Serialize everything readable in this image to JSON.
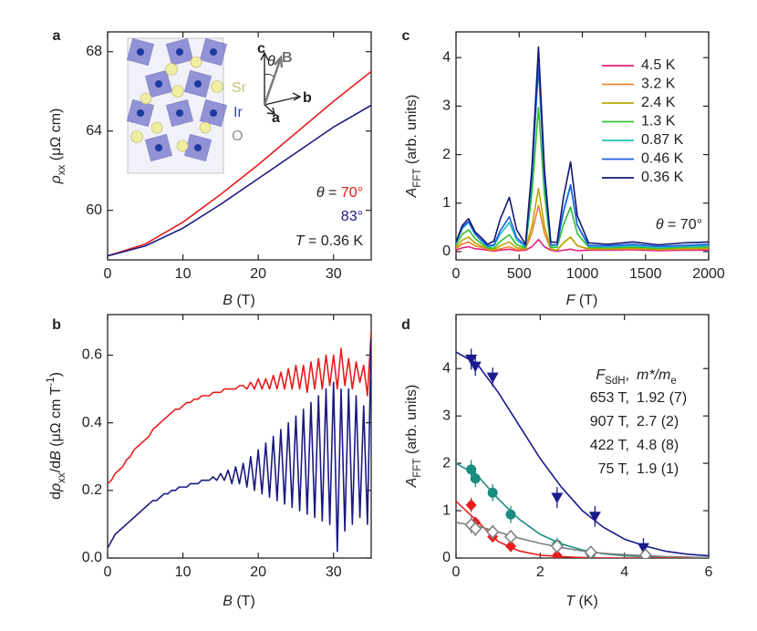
{
  "chart_data": [
    {
      "type": "line",
      "panel_label": "a",
      "x_label": [
        {
          "text": "B",
          "style": "italic"
        },
        {
          "text": " (T)"
        }
      ],
      "y_label": [
        {
          "text": "ρ",
          "style": "italic"
        },
        {
          "text": "xx",
          "style": "sub"
        },
        {
          "text": " (μΩ cm)"
        }
      ],
      "xlim": [
        0,
        35
      ],
      "xticks": [
        0,
        10,
        20,
        30
      ],
      "ylim": [
        57.5,
        69
      ],
      "yticks": [
        60,
        64,
        68
      ],
      "x": [
        0,
        5,
        10,
        15,
        20,
        25,
        30,
        35
      ],
      "series": [
        {
          "color": "#e81c1c",
          "values": [
            57.7,
            58.3,
            59.4,
            60.8,
            62.3,
            63.9,
            65.5,
            67.0
          ]
        },
        {
          "color": "#1a1a80",
          "values": [
            57.7,
            58.2,
            59.1,
            60.3,
            61.6,
            62.9,
            64.2,
            65.3
          ]
        }
      ],
      "annotations": [
        [
          {
            "text": "θ",
            "style": "italic"
          },
          {
            "text": " = "
          },
          {
            "text": "70°",
            "color": "#e81c1c"
          }
        ],
        [
          {
            "text": "83°",
            "color": "#1a1a80"
          }
        ],
        [
          {
            "text": "T",
            "style": "italic"
          },
          {
            "text": " = 0.36 K"
          }
        ],
        [
          {
            "text": "Sr",
            "color": "#c8c078"
          }
        ],
        [
          {
            "text": "Ir",
            "color": "#2a48a8"
          }
        ],
        [
          {
            "text": "O",
            "color": "#909090"
          }
        ],
        [
          {
            "text": "c",
            "style": "bold"
          }
        ],
        [
          {
            "text": "θ",
            "style": "italic"
          }
        ],
        [
          {
            "text": "B",
            "style": "bold",
            "color": "#707070"
          }
        ],
        [
          {
            "text": "b",
            "style": "bold"
          }
        ],
        [
          {
            "text": "a",
            "style": "bold"
          }
        ]
      ]
    },
    {
      "type": "line",
      "panel_label": "b",
      "x_label": [
        {
          "text": "B",
          "style": "italic"
        },
        {
          "text": " (T)"
        }
      ],
      "y_label": [
        {
          "text": "d"
        },
        {
          "text": "ρ",
          "style": "italic"
        },
        {
          "text": "xx",
          "style": "sub"
        },
        {
          "text": "/d"
        },
        {
          "text": "B",
          "style": "italic"
        },
        {
          "text": " (μΩ cm T"
        },
        {
          "text": "-1",
          "style": "sup"
        },
        {
          "text": ")"
        }
      ],
      "xlim": [
        0,
        35
      ],
      "xticks": [
        0,
        10,
        20,
        30
      ],
      "ylim": [
        0,
        0.72
      ],
      "yticks": [
        {
          "value": 0,
          "label": "0.0"
        },
        0.2,
        0.4,
        0.6
      ],
      "x": [
        0,
        0.5,
        1,
        1.5,
        2,
        2.5,
        3,
        3.5,
        4,
        4.5,
        5,
        5.5,
        6,
        6.5,
        7,
        7.5,
        8,
        8.5,
        9,
        9.5,
        10,
        10.5,
        11,
        11.5,
        12,
        12.5,
        13,
        13.5,
        14,
        14.5,
        15,
        15.5,
        16,
        16.5,
        17,
        17.5,
        18,
        18.5,
        19,
        19.5,
        20,
        20.5,
        21,
        21.5,
        22,
        22.5,
        23,
        23.5,
        24,
        24.5,
        25,
        25.5,
        26,
        26.5,
        27,
        27.5,
        28,
        28.5,
        29,
        29.5,
        30,
        30.5,
        31,
        31.5,
        32,
        32.5,
        33,
        33.5,
        34,
        34.5,
        35
      ],
      "series": [
        {
          "color": "#e81c1c",
          "values": [
            0.22,
            0.23,
            0.25,
            0.26,
            0.27,
            0.29,
            0.3,
            0.32,
            0.33,
            0.34,
            0.35,
            0.36,
            0.38,
            0.39,
            0.4,
            0.41,
            0.42,
            0.43,
            0.44,
            0.44,
            0.45,
            0.46,
            0.46,
            0.47,
            0.47,
            0.48,
            0.48,
            0.48,
            0.49,
            0.49,
            0.49,
            0.5,
            0.5,
            0.5,
            0.5,
            0.51,
            0.51,
            0.5,
            0.52,
            0.5,
            0.53,
            0.5,
            0.53,
            0.5,
            0.54,
            0.5,
            0.55,
            0.5,
            0.56,
            0.5,
            0.57,
            0.5,
            0.57,
            0.49,
            0.58,
            0.5,
            0.59,
            0.5,
            0.6,
            0.51,
            0.6,
            0.5,
            0.62,
            0.51,
            0.59,
            0.5,
            0.58,
            0.52,
            0.57,
            0.48,
            0.67
          ]
        },
        {
          "color": "#1a1a80",
          "values": [
            0.03,
            0.05,
            0.07,
            0.08,
            0.09,
            0.1,
            0.11,
            0.12,
            0.13,
            0.14,
            0.15,
            0.16,
            0.17,
            0.17,
            0.18,
            0.19,
            0.19,
            0.2,
            0.2,
            0.21,
            0.21,
            0.21,
            0.22,
            0.22,
            0.22,
            0.23,
            0.23,
            0.23,
            0.24,
            0.23,
            0.25,
            0.23,
            0.26,
            0.22,
            0.27,
            0.22,
            0.28,
            0.21,
            0.3,
            0.2,
            0.32,
            0.19,
            0.34,
            0.18,
            0.36,
            0.17,
            0.38,
            0.16,
            0.4,
            0.15,
            0.42,
            0.14,
            0.44,
            0.13,
            0.46,
            0.12,
            0.48,
            0.11,
            0.5,
            0.1,
            0.52,
            0.02,
            0.5,
            0.08,
            0.5,
            0.1,
            0.48,
            0.12,
            0.45,
            0.1,
            0.65
          ]
        }
      ]
    },
    {
      "type": "line",
      "panel_label": "c",
      "x_label": [
        {
          "text": "F",
          "style": "italic"
        },
        {
          "text": " (T)"
        }
      ],
      "y_label": [
        {
          "text": "A",
          "style": "italic"
        },
        {
          "text": "FFT",
          "style": "sub"
        },
        {
          "text": " (arb. units)"
        }
      ],
      "xlim": [
        0,
        2000
      ],
      "xticks": [
        0,
        500,
        1000,
        1500,
        2000
      ],
      "ylim": [
        -0.17,
        4.53
      ],
      "yticks": [
        0,
        1,
        2,
        3,
        4
      ],
      "x": [
        0,
        50,
        100,
        150,
        200,
        250,
        300,
        350,
        422,
        480,
        550,
        600,
        653,
        700,
        750,
        800,
        850,
        907,
        960,
        1050,
        1200,
        1400,
        1600,
        1800,
        2000
      ],
      "series": [
        {
          "name": "4.5 K",
          "color": "#e0207a",
          "values": [
            0.03,
            0.08,
            0.1,
            0.06,
            0.05,
            0.03,
            0.01,
            0.03,
            0.05,
            0.02,
            0.03,
            0.1,
            0.25,
            0.1,
            0.03,
            0.01,
            0.03,
            0.05,
            0.02,
            0.03,
            0.03,
            0.04,
            0.02,
            0.03,
            0.03
          ]
        },
        {
          "name": "3.2 K",
          "color": "#f08030",
          "values": [
            0.06,
            0.16,
            0.2,
            0.12,
            0.09,
            0.05,
            0.02,
            0.06,
            0.1,
            0.04,
            0.05,
            0.38,
            0.95,
            0.38,
            0.05,
            0.03,
            0.18,
            0.3,
            0.12,
            0.05,
            0.05,
            0.06,
            0.04,
            0.05,
            0.06
          ]
        },
        {
          "name": "2.4 K",
          "color": "#b8a800",
          "values": [
            0.09,
            0.24,
            0.3,
            0.18,
            0.12,
            0.06,
            0.04,
            0.12,
            0.2,
            0.08,
            0.06,
            0.52,
            1.3,
            0.52,
            0.06,
            0.03,
            0.18,
            0.3,
            0.12,
            0.06,
            0.06,
            0.07,
            0.05,
            0.06,
            0.07
          ]
        },
        {
          "name": "1.3 K",
          "color": "#30c030",
          "values": [
            0.14,
            0.36,
            0.45,
            0.27,
            0.17,
            0.08,
            0.07,
            0.21,
            0.35,
            0.14,
            0.08,
            1.19,
            2.97,
            1.19,
            0.09,
            0.09,
            0.55,
            0.92,
            0.37,
            0.09,
            0.08,
            0.1,
            0.07,
            0.09,
            0.1
          ]
        },
        {
          "name": "0.87 K",
          "color": "#20c0c0",
          "values": [
            0.18,
            0.48,
            0.6,
            0.36,
            0.22,
            0.1,
            0.12,
            0.36,
            0.6,
            0.24,
            0.1,
            1.52,
            3.8,
            1.52,
            0.12,
            0.14,
            0.81,
            1.35,
            0.54,
            0.11,
            0.1,
            0.12,
            0.09,
            0.11,
            0.12
          ]
        },
        {
          "name": "0.46 K",
          "color": "#2060e0",
          "values": [
            0.19,
            0.5,
            0.62,
            0.37,
            0.24,
            0.12,
            0.14,
            0.43,
            0.72,
            0.29,
            0.12,
            1.54,
            3.85,
            1.54,
            0.14,
            0.14,
            0.83,
            1.38,
            0.55,
            0.13,
            0.12,
            0.15,
            0.11,
            0.13,
            0.15
          ]
        },
        {
          "name": "0.36 K",
          "color": "#101870",
          "values": [
            0.2,
            0.54,
            0.68,
            0.41,
            0.29,
            0.15,
            0.22,
            0.67,
            1.12,
            0.45,
            0.15,
            1.69,
            4.22,
            1.69,
            0.2,
            0.19,
            1.11,
            1.85,
            0.74,
            0.18,
            0.15,
            0.2,
            0.14,
            0.18,
            0.2
          ]
        }
      ],
      "annotations": [
        [
          {
            "text": "θ",
            "style": "italic"
          },
          {
            "text": " = 70°"
          }
        ]
      ]
    },
    {
      "type": "scatter",
      "panel_label": "d",
      "x_label": [
        {
          "text": "T",
          "style": "italic"
        },
        {
          "text": " (K)"
        }
      ],
      "y_label": [
        {
          "text": "A",
          "style": "italic"
        },
        {
          "text": "FFT",
          "style": "sub"
        },
        {
          "text": " (arb. units)"
        }
      ],
      "xlim": [
        0,
        6
      ],
      "xticks": [
        0,
        2,
        4,
        6
      ],
      "ylim": [
        0,
        5.14
      ],
      "yticks": [
        0,
        1,
        2,
        3,
        4
      ],
      "legend_title_left": [
        {
          "text": "F",
          "style": "italic"
        },
        {
          "text": "SdH",
          "style": "sub"
        },
        {
          "text": ","
        }
      ],
      "legend_title_right": [
        {
          "text": "m*/m",
          "style": "italic"
        },
        {
          "text": "e",
          "style": "sub"
        }
      ],
      "fit_x": [
        0,
        0.5,
        1,
        1.5,
        2,
        2.5,
        3,
        3.5,
        4,
        4.5,
        5,
        5.5,
        6
      ],
      "series": [
        {
          "name": "653 T,",
          "mass_label": "1.92 (7)",
          "color": "#1a1a8c",
          "marker": "triangle-down",
          "x": [
            0.36,
            0.46,
            0.87,
            2.4,
            3.3,
            4.45
          ],
          "values": [
            4.2,
            4.05,
            3.82,
            1.28,
            0.88,
            0.22
          ],
          "errors": [
            0.22,
            0.2,
            0.2,
            0.22,
            0.22,
            0.2
          ],
          "fit": [
            4.35,
            4.1,
            3.5,
            2.8,
            2.1,
            1.5,
            1.0,
            0.65,
            0.4,
            0.25,
            0.14,
            0.08,
            0.05
          ]
        },
        {
          "name": "907 T,",
          "mass_label": "2.7 (2)",
          "color": "#1a8c80",
          "marker": "circle",
          "x": [
            0.36,
            0.46,
            0.87,
            1.3,
            2.4,
            3.2,
            4.5
          ],
          "values": [
            1.87,
            1.68,
            1.38,
            0.92,
            0.28,
            0.1,
            0.05
          ],
          "errors": [
            0.2,
            0.18,
            0.18,
            0.18,
            0.15,
            0.1,
            0.08
          ],
          "fit": [
            2.0,
            1.75,
            1.25,
            0.82,
            0.5,
            0.3,
            0.17,
            0.09,
            0.05,
            0.03,
            0.02,
            0.01,
            0.01
          ]
        },
        {
          "name": "422 T,",
          "mass_label": "4.8 (8)",
          "color": "#e81c1c",
          "marker": "diamond",
          "x": [
            0.36,
            0.46,
            0.87,
            1.3,
            2.4
          ],
          "values": [
            1.12,
            0.75,
            0.45,
            0.25,
            0.05
          ],
          "errors": [
            0.15,
            0.12,
            0.1,
            0.08,
            0.05
          ],
          "fit": [
            1.2,
            0.78,
            0.35,
            0.15,
            0.06,
            0.03,
            0.01,
            0,
            0,
            0,
            0,
            0,
            0
          ]
        },
        {
          "name": "75 T,",
          "mass_label": "1.9 (1)",
          "color": "#808080",
          "marker": "diamond-open",
          "x": [
            0.36,
            0.46,
            0.87,
            1.3,
            2.4,
            3.2,
            4.5
          ],
          "values": [
            0.7,
            0.62,
            0.55,
            0.45,
            0.25,
            0.12,
            0.06
          ],
          "errors": [
            0.18,
            0.16,
            0.15,
            0.14,
            0.12,
            0.1,
            0.08
          ],
          "fit": [
            0.75,
            0.68,
            0.55,
            0.42,
            0.31,
            0.22,
            0.15,
            0.1,
            0.07,
            0.05,
            0.03,
            0.02,
            0.01
          ]
        }
      ]
    }
  ]
}
